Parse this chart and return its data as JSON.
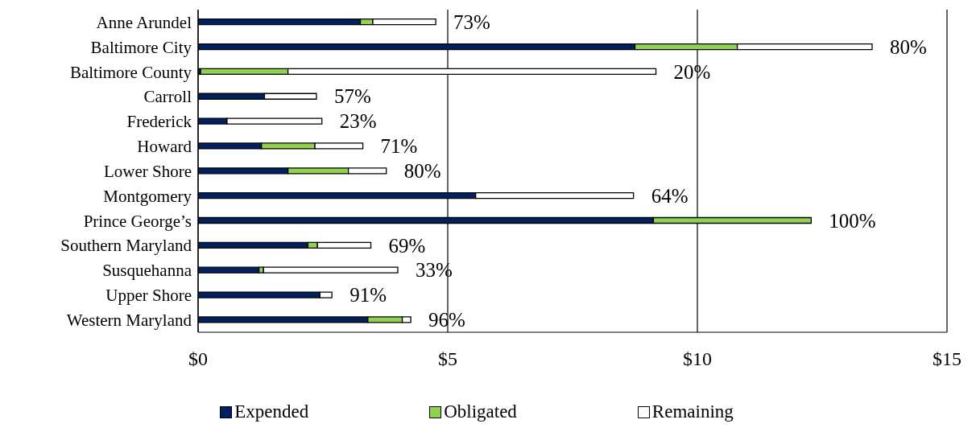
{
  "chart_data": {
    "type": "bar",
    "orientation": "horizontal",
    "stacked": true,
    "categories": [
      "Anne Arundel",
      "Baltimore City",
      "Baltimore County",
      "Carroll",
      "Frederick",
      "Howard",
      "Lower Shore",
      "Montgomery",
      "Prince George’s",
      "Southern Maryland",
      "Susquehanna",
      "Upper Shore",
      "Western Maryland"
    ],
    "series": [
      {
        "name": "Expended",
        "color": "#002060",
        "values": [
          3.25,
          8.75,
          0.05,
          1.33,
          0.58,
          1.27,
          1.8,
          5.56,
          9.12,
          2.2,
          1.22,
          2.44,
          3.4
        ]
      },
      {
        "name": "Obligated",
        "color": "#92d050",
        "values": [
          0.25,
          2.05,
          1.75,
          0,
          0,
          1.07,
          1.21,
          0,
          3.16,
          0.19,
          0.09,
          0,
          0.69
        ]
      },
      {
        "name": "Remaining",
        "color": "#ffffff",
        "values": [
          1.26,
          2.7,
          7.37,
          1.04,
          1.9,
          0.96,
          0.76,
          3.16,
          0,
          1.07,
          2.69,
          0.24,
          0.17
        ]
      }
    ],
    "annotations": [
      {
        "text": "73%",
        "x": 4.76,
        "y": "Anne Arundel"
      },
      {
        "text": "80%",
        "x": 13.5,
        "y": "Baltimore City"
      },
      {
        "text": "20%",
        "x": 9.17,
        "y": "Baltimore County"
      },
      {
        "text": "57%",
        "x": 2.37,
        "y": "Carroll"
      },
      {
        "text": "23%",
        "x": 2.48,
        "y": "Frederick"
      },
      {
        "text": "71%",
        "x": 3.3,
        "y": "Howard"
      },
      {
        "text": "80%",
        "x": 3.77,
        "y": "Lower Shore"
      },
      {
        "text": "64%",
        "x": 8.72,
        "y": "Montgomery"
      },
      {
        "text": "100%",
        "x": 12.28,
        "y": "Prince George’s"
      },
      {
        "text": "69%",
        "x": 3.46,
        "y": "Southern Maryland"
      },
      {
        "text": "33%",
        "x": 4.0,
        "y": "Susquehanna"
      },
      {
        "text": "91%",
        "x": 2.68,
        "y": "Upper Shore"
      },
      {
        "text": "96%",
        "x": 4.26,
        "y": "Western Maryland"
      }
    ],
    "xlim": [
      0,
      15
    ],
    "xticks": [
      {
        "value": 0,
        "label": "$0"
      },
      {
        "value": 5,
        "label": "$5"
      },
      {
        "value": 10,
        "label": "$10"
      },
      {
        "value": 15,
        "label": "$15"
      }
    ],
    "grid": "x",
    "legend": "bottom"
  }
}
